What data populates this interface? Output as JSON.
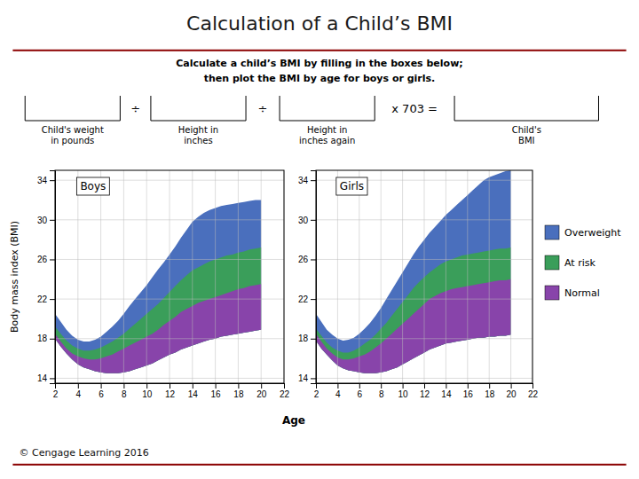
{
  "chart_data": [
    {
      "type": "area",
      "title": "Calculation of a Child’s BMI",
      "subtitle": "Boys",
      "annotations": [
        "Calculate a child’s BMI by filling in the boxes below;",
        "then plot the BMI by age for boys or girls.",
        "÷",
        "÷",
        "x 703 =",
        "Child's weight\nin pounds",
        "Height in\ninches",
        "Height in\ninches again",
        "Child's\nBMI",
        "© Cengage Learning 2016"
      ],
      "x": [
        2,
        2.5,
        3,
        3.5,
        4,
        4.5,
        5,
        5.5,
        6,
        6.5,
        7,
        7.5,
        8,
        8.5,
        9,
        9.5,
        10,
        10.5,
        11,
        11.5,
        12,
        12.5,
        13,
        13.5,
        14,
        14.5,
        15,
        15.5,
        16,
        16.5,
        17,
        17.5,
        18,
        18.5,
        19,
        19.5,
        20
      ],
      "series": [
        {
          "name": "Overweight",
          "color": "#4a6fbd",
          "values": [
            20.5,
            19.7,
            18.9,
            18.3,
            17.9,
            17.7,
            17.7,
            17.9,
            18.2,
            18.7,
            19.2,
            19.8,
            20.5,
            21.3,
            22.0,
            22.7,
            23.4,
            24.2,
            25.0,
            25.7,
            26.5,
            27.3,
            28.2,
            29.0,
            29.8,
            30.3,
            30.7,
            31.0,
            31.2,
            31.4,
            31.5,
            31.6,
            31.7,
            31.8,
            31.9,
            32.0,
            32.0
          ],
          "low": [
            18.0,
            17.2,
            16.5,
            15.9,
            15.4,
            15.1,
            14.9,
            14.7,
            14.6,
            14.5,
            14.5,
            14.5,
            14.6,
            14.7,
            14.9,
            15.1,
            15.3,
            15.5,
            15.8,
            16.1,
            16.4,
            16.6,
            16.9,
            17.1,
            17.3,
            17.5,
            17.7,
            17.9,
            18.0,
            18.2,
            18.3,
            18.4,
            18.5,
            18.6,
            18.7,
            18.8,
            18.9
          ]
        },
        {
          "name": "At risk",
          "color": "#3a9e5a",
          "values": [
            19.2,
            18.5,
            17.8,
            17.3,
            17.0,
            16.8,
            16.8,
            16.9,
            17.1,
            17.4,
            17.7,
            18.1,
            18.5,
            19.0,
            19.5,
            20.0,
            20.5,
            21.0,
            21.5,
            22.1,
            22.7,
            23.3,
            23.9,
            24.4,
            24.9,
            25.2,
            25.5,
            25.8,
            26.0,
            26.2,
            26.4,
            26.5,
            26.7,
            26.8,
            27.0,
            27.1,
            27.2
          ],
          "low": [
            18.0,
            17.2,
            16.5,
            15.9,
            15.4,
            15.1,
            14.9,
            14.7,
            14.6,
            14.5,
            14.5,
            14.5,
            14.6,
            14.7,
            14.9,
            15.1,
            15.3,
            15.5,
            15.8,
            16.1,
            16.4,
            16.6,
            16.9,
            17.1,
            17.3,
            17.5,
            17.7,
            17.9,
            18.0,
            18.2,
            18.3,
            18.4,
            18.5,
            18.6,
            18.7,
            18.8,
            18.9
          ]
        },
        {
          "name": "Normal",
          "color": "#8844aa",
          "values": [
            18.5,
            17.7,
            17.0,
            16.5,
            16.2,
            16.0,
            15.9,
            15.9,
            16.0,
            16.2,
            16.4,
            16.7,
            17.0,
            17.3,
            17.6,
            17.9,
            18.2,
            18.5,
            18.9,
            19.4,
            19.8,
            20.2,
            20.7,
            21.0,
            21.3,
            21.6,
            21.8,
            22.0,
            22.2,
            22.4,
            22.6,
            22.8,
            23.0,
            23.1,
            23.3,
            23.4,
            23.5
          ],
          "low": [
            18.0,
            17.2,
            16.5,
            15.9,
            15.4,
            15.1,
            14.9,
            14.7,
            14.6,
            14.5,
            14.5,
            14.5,
            14.6,
            14.7,
            14.9,
            15.1,
            15.3,
            15.5,
            15.8,
            16.1,
            16.4,
            16.6,
            16.9,
            17.1,
            17.3,
            17.5,
            17.7,
            17.9,
            18.0,
            18.2,
            18.3,
            18.4,
            18.5,
            18.6,
            18.7,
            18.8,
            18.9
          ]
        }
      ],
      "xlim": [
        2,
        22
      ],
      "xticks": [
        2,
        4,
        6,
        8,
        10,
        12,
        14,
        16,
        18,
        20,
        22
      ],
      "ylim": [
        13.5,
        35
      ],
      "yticks": [
        14,
        18,
        22,
        26,
        30,
        34
      ],
      "xlabel": "Age",
      "ylabel": "Body mass index (BMI)",
      "grid": true
    },
    {
      "type": "area",
      "subtitle": "Girls",
      "x": [
        2,
        2.5,
        3,
        3.5,
        4,
        4.5,
        5,
        5.5,
        6,
        6.5,
        7,
        7.5,
        8,
        8.5,
        9,
        9.5,
        10,
        10.5,
        11,
        11.5,
        12,
        12.5,
        13,
        13.5,
        14,
        14.5,
        15,
        15.5,
        16,
        16.5,
        17,
        17.5,
        18,
        18.5,
        19,
        19.5,
        20
      ],
      "series": [
        {
          "name": "Overweight",
          "color": "#4a6fbd",
          "values": [
            20.5,
            19.7,
            18.9,
            18.4,
            18.0,
            17.8,
            17.9,
            18.1,
            18.5,
            19.0,
            19.6,
            20.3,
            21.1,
            22.0,
            22.9,
            23.8,
            24.7,
            25.6,
            26.5,
            27.3,
            28.0,
            28.7,
            29.3,
            29.9,
            30.5,
            31.0,
            31.5,
            32.0,
            32.5,
            33.0,
            33.5,
            34.0,
            34.3,
            34.5,
            34.7,
            34.9,
            35.0
          ],
          "low": [
            17.8,
            17.0,
            16.4,
            15.8,
            15.3,
            15.0,
            14.8,
            14.7,
            14.6,
            14.5,
            14.5,
            14.5,
            14.6,
            14.7,
            14.9,
            15.1,
            15.4,
            15.7,
            16.0,
            16.3,
            16.6,
            16.9,
            17.1,
            17.3,
            17.5,
            17.6,
            17.7,
            17.8,
            17.9,
            18.0,
            18.1,
            18.1,
            18.2,
            18.2,
            18.3,
            18.3,
            18.4
          ]
        },
        {
          "name": "At risk",
          "color": "#3a9e5a",
          "values": [
            19.0,
            18.3,
            17.6,
            17.1,
            16.8,
            16.6,
            16.6,
            16.8,
            17.1,
            17.5,
            17.9,
            18.4,
            19.0,
            19.6,
            20.3,
            21.0,
            21.7,
            22.4,
            23.1,
            23.7,
            24.2,
            24.7,
            25.1,
            25.5,
            25.8,
            26.0,
            26.2,
            26.4,
            26.5,
            26.6,
            26.7,
            26.8,
            26.9,
            27.0,
            27.1,
            27.1,
            27.2
          ],
          "low": [
            17.8,
            17.0,
            16.4,
            15.8,
            15.3,
            15.0,
            14.8,
            14.7,
            14.6,
            14.5,
            14.5,
            14.5,
            14.6,
            14.7,
            14.9,
            15.1,
            15.4,
            15.7,
            16.0,
            16.3,
            16.6,
            16.9,
            17.1,
            17.3,
            17.5,
            17.6,
            17.7,
            17.8,
            17.9,
            18.0,
            18.1,
            18.1,
            18.2,
            18.2,
            18.3,
            18.3,
            18.4
          ]
        },
        {
          "name": "Normal",
          "color": "#8844aa",
          "values": [
            18.5,
            17.7,
            17.0,
            16.5,
            16.1,
            15.9,
            15.9,
            16.0,
            16.2,
            16.4,
            16.7,
            17.1,
            17.5,
            18.0,
            18.5,
            19.0,
            19.5,
            20.0,
            20.5,
            21.0,
            21.5,
            22.0,
            22.3,
            22.6,
            22.8,
            23.0,
            23.1,
            23.2,
            23.3,
            23.4,
            23.5,
            23.6,
            23.7,
            23.8,
            23.9,
            23.9,
            24.0
          ],
          "low": [
            17.8,
            17.0,
            16.4,
            15.8,
            15.3,
            15.0,
            14.8,
            14.7,
            14.6,
            14.5,
            14.5,
            14.5,
            14.6,
            14.7,
            14.9,
            15.1,
            15.4,
            15.7,
            16.0,
            16.3,
            16.6,
            16.9,
            17.1,
            17.3,
            17.5,
            17.6,
            17.7,
            17.8,
            17.9,
            18.0,
            18.1,
            18.1,
            18.2,
            18.2,
            18.3,
            18.3,
            18.4
          ]
        }
      ],
      "xlim": [
        2,
        22
      ],
      "xticks": [
        2,
        4,
        6,
        8,
        10,
        12,
        14,
        16,
        18,
        20,
        22
      ],
      "ylim": [
        13.5,
        35
      ],
      "yticks": [
        14,
        18,
        22,
        26,
        30,
        34
      ],
      "grid": true,
      "legend": "right"
    }
  ]
}
